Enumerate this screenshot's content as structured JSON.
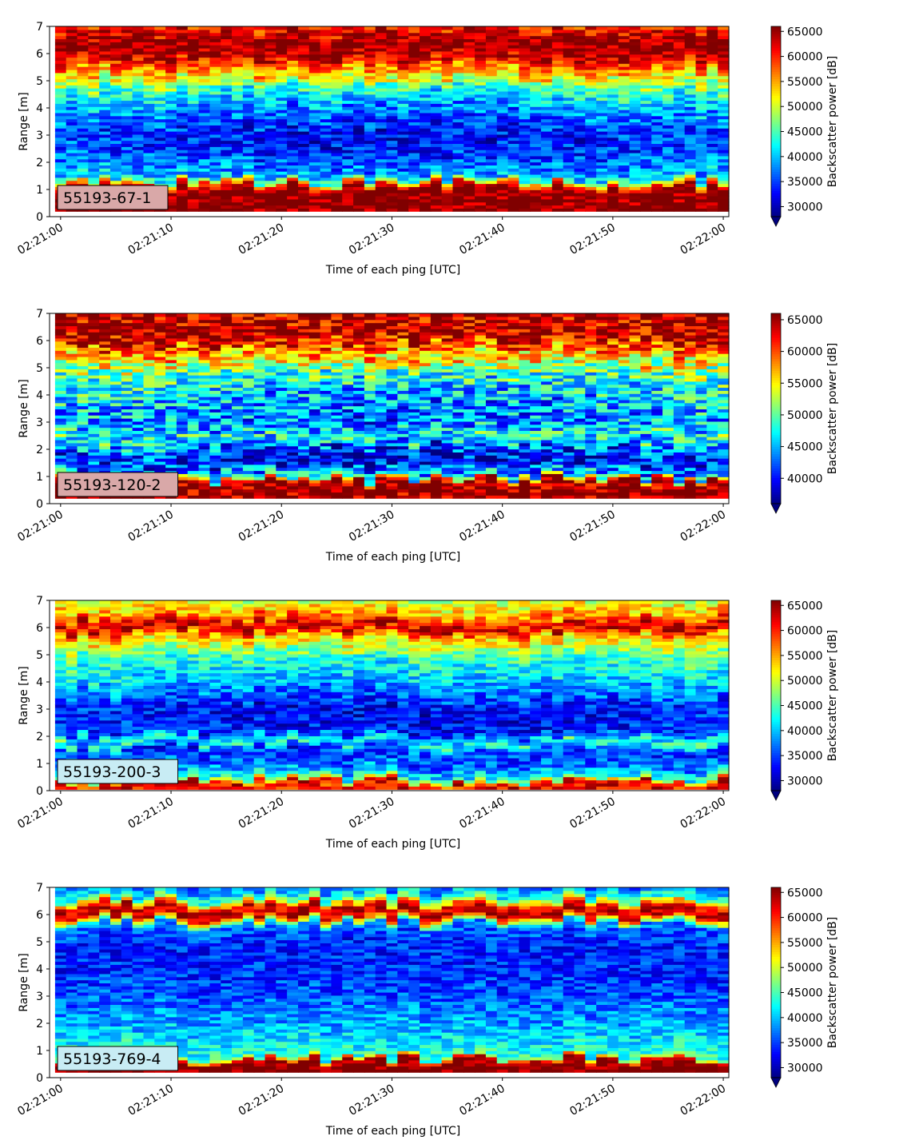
{
  "colormap": "jet",
  "colors": {
    "under": "#00007f",
    "over": "#7f0000",
    "frame": "#000000",
    "background": "#ffffff"
  },
  "chart_data": [
    {
      "type": "heatmap",
      "label": "55193-67-1",
      "label_box_color": "#d9a8a8",
      "xlabel": "Time of each ping [UTC]",
      "ylabel": "Range [m]",
      "colorbar_label": "Backscatter power [dB]",
      "x_start": "02:21:00",
      "x_end": "02:22:00",
      "xlim": [
        "02:20:59",
        "02:22:00.5"
      ],
      "xticks": [
        "02:21:00",
        "02:21:10",
        "02:21:20",
        "02:21:30",
        "02:21:40",
        "02:21:50",
        "02:22:00"
      ],
      "ylim": [
        0,
        7
      ],
      "yticks": [
        "0",
        "1",
        "2",
        "3",
        "4",
        "5",
        "6",
        "7"
      ],
      "clim": [
        28000,
        66000
      ],
      "colorbar_ticks": [
        "30000",
        "35000",
        "40000",
        "45000",
        "50000",
        "55000",
        "60000",
        "65000"
      ],
      "colorbar_extend": "min",
      "pings": 61,
      "data_range_start_m": 0.2,
      "profile": [
        {
          "range_m": 0.2,
          "power": 66000
        },
        {
          "range_m": 1.0,
          "power": 66000
        },
        {
          "range_m": 1.15,
          "power": 60000
        },
        {
          "range_m": 1.4,
          "power": 42000
        },
        {
          "range_m": 1.8,
          "power": 39000
        },
        {
          "range_m": 2.5,
          "power": 36000
        },
        {
          "range_m": 3.0,
          "power": 35000
        },
        {
          "range_m": 4.0,
          "power": 40000
        },
        {
          "range_m": 4.5,
          "power": 44000
        },
        {
          "range_m": 5.0,
          "power": 50000
        },
        {
          "range_m": 5.5,
          "power": 57000
        },
        {
          "range_m": 6.0,
          "power": 65000
        },
        {
          "range_m": 6.5,
          "power": 66000
        },
        {
          "range_m": 7.0,
          "power": 60000
        }
      ],
      "noise": 5000,
      "time_drift": -2500
    },
    {
      "type": "heatmap",
      "label": "55193-120-2",
      "label_box_color": "#d9a8a8",
      "xlabel": "Time of each ping [UTC]",
      "ylabel": "Range [m]",
      "colorbar_label": "Backscatter power [dB]",
      "x_start": "02:21:00",
      "x_end": "02:22:00",
      "xlim": [
        "02:20:59",
        "02:22:00.5"
      ],
      "xticks": [
        "02:21:00",
        "02:21:10",
        "02:21:20",
        "02:21:30",
        "02:21:40",
        "02:21:50",
        "02:22:00"
      ],
      "ylim": [
        0,
        7
      ],
      "yticks": [
        "0",
        "1",
        "2",
        "3",
        "4",
        "5",
        "6",
        "7"
      ],
      "clim": [
        36000,
        66000
      ],
      "colorbar_ticks": [
        "40000",
        "45000",
        "50000",
        "55000",
        "60000",
        "65000"
      ],
      "colorbar_extend": "min",
      "pings": 61,
      "data_range_start_m": 0.2,
      "profile": [
        {
          "range_m": 0.2,
          "power": 66000
        },
        {
          "range_m": 0.8,
          "power": 66000
        },
        {
          "range_m": 1.0,
          "power": 46000
        },
        {
          "range_m": 1.5,
          "power": 41000
        },
        {
          "range_m": 2.0,
          "power": 43000
        },
        {
          "range_m": 2.4,
          "power": 50000
        },
        {
          "range_m": 3.0,
          "power": 45000
        },
        {
          "range_m": 4.0,
          "power": 47000
        },
        {
          "range_m": 5.0,
          "power": 52000
        },
        {
          "range_m": 5.5,
          "power": 57000
        },
        {
          "range_m": 6.2,
          "power": 65000
        },
        {
          "range_m": 7.0,
          "power": 64000
        }
      ],
      "noise": 6000,
      "time_drift": -2500
    },
    {
      "type": "heatmap",
      "label": "55193-200-3",
      "label_box_color": "#c8ecf4",
      "xlabel": "Time of each ping [UTC]",
      "ylabel": "Range [m]",
      "colorbar_label": "Backscatter power [dB]",
      "x_start": "02:21:00",
      "x_end": "02:22:00",
      "xlim": [
        "02:20:59",
        "02:22:00.5"
      ],
      "xticks": [
        "02:21:00",
        "02:21:10",
        "02:21:20",
        "02:21:30",
        "02:21:40",
        "02:21:50",
        "02:22:00"
      ],
      "ylim": [
        0,
        7
      ],
      "yticks": [
        "0",
        "1",
        "2",
        "3",
        "4",
        "5",
        "6",
        "7"
      ],
      "clim": [
        28000,
        66000
      ],
      "colorbar_ticks": [
        "30000",
        "35000",
        "40000",
        "45000",
        "50000",
        "55000",
        "60000",
        "65000"
      ],
      "colorbar_extend": "min",
      "pings": 61,
      "data_range_start_m": 0.05,
      "profile": [
        {
          "range_m": 0.05,
          "power": 60000
        },
        {
          "range_m": 0.3,
          "power": 63000
        },
        {
          "range_m": 0.5,
          "power": 44000
        },
        {
          "range_m": 1.0,
          "power": 36000
        },
        {
          "range_m": 1.5,
          "power": 35000
        },
        {
          "range_m": 1.8,
          "power": 46000
        },
        {
          "range_m": 2.2,
          "power": 35000
        },
        {
          "range_m": 3.0,
          "power": 34000
        },
        {
          "range_m": 4.0,
          "power": 41000
        },
        {
          "range_m": 5.0,
          "power": 46000
        },
        {
          "range_m": 5.7,
          "power": 54000
        },
        {
          "range_m": 6.0,
          "power": 64000
        },
        {
          "range_m": 6.5,
          "power": 55000
        },
        {
          "range_m": 7.0,
          "power": 50000
        }
      ],
      "noise": 4500,
      "time_drift": -2000
    },
    {
      "type": "heatmap",
      "label": "55193-769-4",
      "label_box_color": "#c8ecf4",
      "xlabel": "Time of each ping [UTC]",
      "ylabel": "Range [m]",
      "colorbar_label": "Backscatter power [dB]",
      "x_start": "02:21:00",
      "x_end": "02:22:00",
      "xlim": [
        "02:20:59",
        "02:22:00.5"
      ],
      "xticks": [
        "02:21:00",
        "02:21:10",
        "02:21:20",
        "02:21:30",
        "02:21:40",
        "02:21:50",
        "02:22:00"
      ],
      "ylim": [
        0,
        7
      ],
      "yticks": [
        "0",
        "1",
        "2",
        "3",
        "4",
        "5",
        "6",
        "7"
      ],
      "clim": [
        28000,
        66000
      ],
      "colorbar_ticks": [
        "30000",
        "35000",
        "40000",
        "45000",
        "50000",
        "55000",
        "60000",
        "65000"
      ],
      "colorbar_extend": "min",
      "pings": 61,
      "data_range_start_m": 0.2,
      "profile": [
        {
          "range_m": 0.2,
          "power": 66000
        },
        {
          "range_m": 0.6,
          "power": 66000
        },
        {
          "range_m": 0.8,
          "power": 44000
        },
        {
          "range_m": 1.5,
          "power": 41000
        },
        {
          "range_m": 2.0,
          "power": 39000
        },
        {
          "range_m": 3.0,
          "power": 36000
        },
        {
          "range_m": 4.0,
          "power": 34000
        },
        {
          "range_m": 5.0,
          "power": 34000
        },
        {
          "range_m": 5.6,
          "power": 37000
        },
        {
          "range_m": 6.0,
          "power": 64000
        },
        {
          "range_m": 6.3,
          "power": 62000
        },
        {
          "range_m": 6.6,
          "power": 45000
        },
        {
          "range_m": 7.0,
          "power": 37000
        }
      ],
      "noise": 4000,
      "time_drift": 0
    }
  ]
}
